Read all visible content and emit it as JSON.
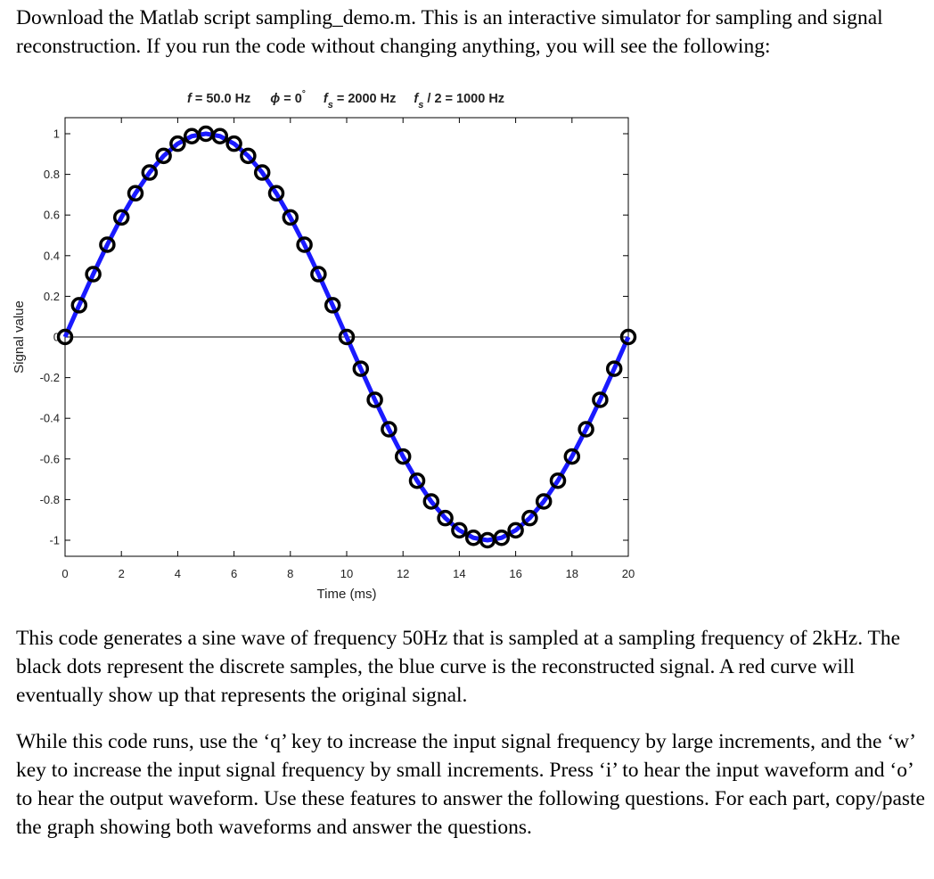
{
  "document": {
    "intro": "Download the Matlab script sampling_demo.m. This is an interactive simulator for sampling and signal reconstruction. If you run the code without changing anything, you will see the following:",
    "description": "This code generates a sine wave of frequency 50Hz that is sampled at a sampling frequency of 2kHz. The black dots represent the discrete samples, the blue curve is the reconstructed signal. A red curve will eventually show up that represents the original signal.",
    "instructions": "While this code runs, use the ‘q’ key to increase the input signal frequency by large increments, and the ‘w’ key to increase the input signal frequency by small increments. Press ‘i’ to hear the input waveform and ‘o’ to hear the output waveform. Use these features to answer the following questions. For each part, copy/paste the graph showing both waveforms and answer the questions."
  },
  "chart_data": {
    "type": "line",
    "title_parts": {
      "f_symbol": "f",
      "f_value": " = 50.0 Hz",
      "phi_symbol": "ϕ",
      "phi_value": " = 0",
      "degree": "°",
      "fs_symbol": "f",
      "fs_sub": "s",
      "fs_value": " = 2000 Hz",
      "nyq_symbol": "f",
      "nyq_sub": "s",
      "nyq_value": " / 2 = 1000 Hz"
    },
    "xlabel": "Time (ms)",
    "ylabel": "Signal value",
    "xlim": [
      0,
      20
    ],
    "ylim": [
      -1.1,
      1.1
    ],
    "x_ticks": [
      0,
      2,
      4,
      6,
      8,
      10,
      12,
      14,
      16,
      18,
      20
    ],
    "y_ticks": [
      -1,
      -0.8,
      -0.6,
      -0.4,
      -0.2,
      0,
      0.2,
      0.4,
      0.6,
      0.8,
      1
    ],
    "y_tick_labels": [
      "-1",
      "-0.8",
      "-0.6",
      "-0.4",
      "-0.2",
      "0",
      "0.2",
      "0.4",
      "0.6",
      "0.8",
      "1"
    ],
    "grid": false,
    "zero_line": true,
    "colors": {
      "reconstructed": "#1a1aff",
      "samples": "#000000",
      "axes": "#000000"
    },
    "reconstructed": {
      "x": [
        0,
        0.5,
        1,
        1.5,
        2,
        2.5,
        3,
        3.5,
        4,
        4.5,
        5,
        5.5,
        6,
        6.5,
        7,
        7.5,
        8,
        8.5,
        9,
        9.5,
        10,
        10.5,
        11,
        11.5,
        12,
        12.5,
        13,
        13.5,
        14,
        14.5,
        15,
        15.5,
        16,
        16.5,
        17,
        17.5,
        18,
        18.5,
        19,
        19.5,
        20
      ],
      "y": [
        0,
        0.156,
        0.309,
        0.454,
        0.588,
        0.707,
        0.809,
        0.891,
        0.951,
        0.988,
        1,
        0.988,
        0.951,
        0.891,
        0.809,
        0.707,
        0.588,
        0.454,
        0.309,
        0.156,
        0,
        -0.156,
        -0.309,
        -0.454,
        -0.588,
        -0.707,
        -0.809,
        -0.891,
        -0.951,
        -0.988,
        -1,
        -0.988,
        -0.951,
        -0.891,
        -0.809,
        -0.707,
        -0.588,
        -0.454,
        -0.309,
        -0.156,
        0
      ]
    },
    "samples": {
      "x": [
        0,
        0.5,
        1,
        1.5,
        2,
        2.5,
        3,
        3.5,
        4,
        4.5,
        5,
        5.5,
        6,
        6.5,
        7,
        7.5,
        8,
        8.5,
        9,
        9.5,
        10,
        10.5,
        11,
        11.5,
        12,
        12.5,
        13,
        13.5,
        14,
        14.5,
        15,
        15.5,
        16,
        16.5,
        17,
        17.5,
        18,
        18.5,
        19,
        19.5,
        20
      ],
      "y": [
        0,
        0.156,
        0.309,
        0.454,
        0.588,
        0.707,
        0.809,
        0.891,
        0.951,
        0.988,
        1,
        0.988,
        0.951,
        0.891,
        0.809,
        0.707,
        0.588,
        0.454,
        0.309,
        0.156,
        0,
        -0.156,
        -0.309,
        -0.454,
        -0.588,
        -0.707,
        -0.809,
        -0.891,
        -0.951,
        -0.988,
        -1,
        -0.988,
        -0.951,
        -0.891,
        -0.809,
        -0.707,
        -0.588,
        -0.454,
        -0.309,
        -0.156,
        0
      ]
    }
  }
}
